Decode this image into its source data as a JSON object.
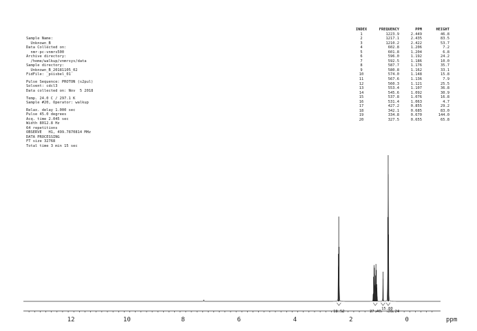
{
  "params": [
    "Sample Name:",
    "  Unknown_B",
    "Data Collected on:",
    "  nmr-pc-vnmrs500",
    "Archive directory:",
    "  /home/walkup/vnmrsys/data",
    "Sample directory:",
    "  Unknown_B_20181105_02",
    "FidFile: _psisbel_01",
    "",
    "Pulse Sequence: PROTON (s2pul)",
    "Solvent: cdcl3",
    "Data collected on: Nov  5 2018",
    "",
    "Temp. 24.0 C / 297.1 K",
    "Sample #20, Operator: walkup",
    "",
    "Relax. delay 1.000 sec",
    "Pulse 45.0 degrees",
    "Acq. time 2.045 sec",
    "Width 8012.8 Hz",
    "64 repetitions",
    "OBSERVE   H1, 499.7870814 MHz",
    "DATA PROCESSING",
    "FT size 32768",
    "Total time 3 min 15 sec"
  ],
  "peak_table": {
    "headers": [
      "INDEX",
      "FREQUENCY",
      "PPM",
      "HEIGHT"
    ],
    "rows": [
      [
        "1",
        "1223.9",
        "2.449",
        "46.8"
      ],
      [
        "2",
        "1217.1",
        "2.435",
        "83.5"
      ],
      [
        "3",
        "1210.2",
        "2.422",
        "53.7"
      ],
      [
        "4",
        "602.8",
        "1.206",
        "7.2"
      ],
      [
        "5",
        "601.8",
        "1.204",
        "6.8"
      ],
      [
        "6",
        "596.0",
        "1.192",
        "24.2"
      ],
      [
        "7",
        "592.5",
        "1.186",
        "10.0"
      ],
      [
        "8",
        "587.7",
        "1.176",
        "35.7"
      ],
      [
        "9",
        "580.8",
        "1.162",
        "33.1"
      ],
      [
        "10",
        "574.0",
        "1.148",
        "15.8"
      ],
      [
        "11",
        "567.6",
        "1.136",
        "7.9"
      ],
      [
        "12",
        "560.3",
        "1.121",
        "25.5"
      ],
      [
        "13",
        "553.4",
        "1.107",
        "36.8"
      ],
      [
        "14",
        "545.6",
        "1.092",
        "30.9"
      ],
      [
        "15",
        "537.8",
        "1.076",
        "16.8"
      ],
      [
        "16",
        "531.4",
        "1.063",
        "4.7"
      ],
      [
        "17",
        "427.2",
        "0.855",
        "29.2"
      ],
      [
        "18",
        "342.1",
        "0.685",
        "83.0"
      ],
      [
        "19",
        "334.8",
        "0.670",
        "144.0"
      ],
      [
        "20",
        "327.5",
        "0.655",
        "65.8"
      ]
    ]
  },
  "chart_data": {
    "type": "line",
    "xlabel": "ppm",
    "x_reversed": true,
    "xlim": [
      13.7,
      -1.2
    ],
    "x_ticks": [
      12,
      10,
      8,
      6,
      4,
      2,
      0
    ],
    "ylim": [
      0,
      144.0
    ],
    "peaks_ppm": [
      2.449,
      2.435,
      2.422,
      1.206,
      1.204,
      1.192,
      1.186,
      1.176,
      1.162,
      1.148,
      1.136,
      1.121,
      1.107,
      1.092,
      1.076,
      1.063,
      0.855,
      0.685,
      0.67,
      0.655
    ],
    "peaks_height": [
      46.8,
      83.5,
      53.7,
      7.2,
      6.8,
      24.2,
      10.0,
      35.7,
      33.1,
      15.8,
      7.9,
      25.5,
      36.8,
      30.9,
      16.8,
      4.7,
      29.2,
      83.0,
      144.0,
      65.8
    ],
    "integrals": [
      {
        "center": 2.43,
        "label": "18.52"
      },
      {
        "center": 1.13,
        "label": "37.40"
      },
      {
        "center": 0.855,
        "label": "15.80"
      },
      {
        "center": 0.67,
        "label": "28.24"
      }
    ]
  }
}
